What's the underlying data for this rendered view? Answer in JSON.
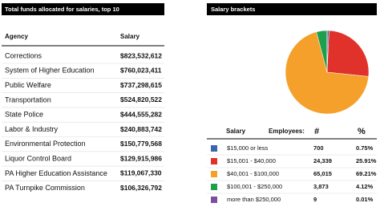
{
  "left_panel": {
    "title": "Total funds allocated for salaries, top 10",
    "table": {
      "columns": [
        "Agency",
        "Salary"
      ],
      "rows": [
        [
          "Corrections",
          "$823,532,612"
        ],
        [
          "System of Higher Education",
          "$760,023,411"
        ],
        [
          "Public Welfare",
          "$737,298,615"
        ],
        [
          "Transportation",
          "$524,820,522"
        ],
        [
          "State Police",
          "$444,555,282"
        ],
        [
          "Labor & Industry",
          "$240,883,742"
        ],
        [
          "Environmental Protection",
          "$150,779,568"
        ],
        [
          "Liquor Control Board",
          "$129,915,986"
        ],
        [
          "PA Higher Education Assistance",
          "$119,067,330"
        ],
        [
          "PA Turnpike Commission",
          "$106,326,792"
        ]
      ]
    }
  },
  "chart_data": {
    "type": "pie",
    "title": "Salary brackets",
    "columns": [
      "Salary",
      "Employees:",
      "#",
      "%"
    ],
    "categories": [
      "$15,000 or less",
      "$15,001 - $40,000",
      "$40,001 - $100,000",
      "$100,001 - $250,000",
      "more than $250,000"
    ],
    "employees": [
      "700",
      "24,339",
      "65,015",
      "3,873",
      "9"
    ],
    "values": [
      0.75,
      25.91,
      69.21,
      4.12,
      0.01
    ],
    "value_labels": [
      "0.75%",
      "25.91%",
      "69.21%",
      "4.12%",
      "0.01%"
    ],
    "colors": [
      "#3b66ad",
      "#e0322b",
      "#f5a02a",
      "#1f9e4c",
      "#7a4f9f"
    ]
  }
}
